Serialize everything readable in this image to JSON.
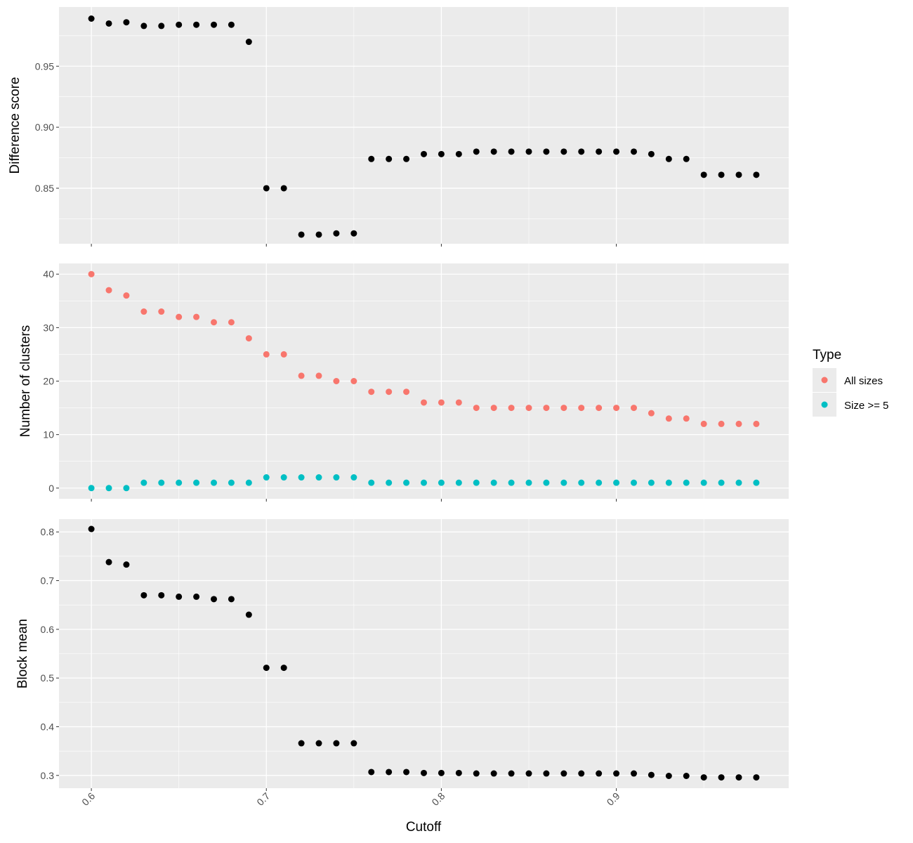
{
  "chart_data": [
    {
      "type": "scatter",
      "panel": "top",
      "xlabel": "",
      "ylabel": "Difference score",
      "xlim": [
        0.5815,
        0.9985
      ],
      "ylim": [
        0.8045,
        0.9985
      ],
      "yticks": [
        0.85,
        0.9,
        0.95
      ],
      "ytick_labels": [
        "0.85",
        "0.90",
        "0.95"
      ],
      "xticks": [
        0.6,
        0.7,
        0.8,
        0.9
      ],
      "show_x_tick_labels": false,
      "grid": true,
      "series": [
        {
          "color": "#000000",
          "x": [
            0.6,
            0.61,
            0.62,
            0.63,
            0.64,
            0.65,
            0.66,
            0.67,
            0.68,
            0.69,
            0.7,
            0.71,
            0.72,
            0.73,
            0.74,
            0.75,
            0.76,
            0.77,
            0.78,
            0.79,
            0.8,
            0.81,
            0.82,
            0.83,
            0.84,
            0.85,
            0.86,
            0.87,
            0.88,
            0.89,
            0.9,
            0.91,
            0.92,
            0.93,
            0.94,
            0.95,
            0.96,
            0.97,
            0.98
          ],
          "y": [
            0.989,
            0.985,
            0.986,
            0.983,
            0.983,
            0.984,
            0.984,
            0.984,
            0.984,
            0.97,
            0.85,
            0.85,
            0.812,
            0.812,
            0.813,
            0.813,
            0.874,
            0.874,
            0.874,
            0.878,
            0.878,
            0.878,
            0.88,
            0.88,
            0.88,
            0.88,
            0.88,
            0.88,
            0.88,
            0.88,
            0.88,
            0.88,
            0.878,
            0.874,
            0.874,
            0.861,
            0.861,
            0.861,
            0.861
          ]
        }
      ]
    },
    {
      "type": "scatter",
      "panel": "middle",
      "xlabel": "",
      "ylabel": "Number of clusters",
      "xlim": [
        0.5815,
        0.9985
      ],
      "ylim": [
        -2,
        42
      ],
      "yticks": [
        0,
        10,
        20,
        30,
        40
      ],
      "ytick_labels": [
        "0",
        "10",
        "20",
        "30",
        "40"
      ],
      "xticks": [
        0.6,
        0.7,
        0.8,
        0.9
      ],
      "show_x_tick_labels": false,
      "grid": true,
      "legend": {
        "title": "Type",
        "position": "right"
      },
      "series": [
        {
          "name": "All sizes",
          "color": "#F8766D",
          "x": [
            0.6,
            0.61,
            0.62,
            0.63,
            0.64,
            0.65,
            0.66,
            0.67,
            0.68,
            0.69,
            0.7,
            0.71,
            0.72,
            0.73,
            0.74,
            0.75,
            0.76,
            0.77,
            0.78,
            0.79,
            0.8,
            0.81,
            0.82,
            0.83,
            0.84,
            0.85,
            0.86,
            0.87,
            0.88,
            0.89,
            0.9,
            0.91,
            0.92,
            0.93,
            0.94,
            0.95,
            0.96,
            0.97,
            0.98
          ],
          "y": [
            40,
            37,
            36,
            33,
            33,
            32,
            32,
            31,
            31,
            28,
            25,
            25,
            21,
            21,
            20,
            20,
            18,
            18,
            18,
            16,
            16,
            16,
            15,
            15,
            15,
            15,
            15,
            15,
            15,
            15,
            15,
            15,
            14,
            13,
            13,
            12,
            12,
            12,
            12
          ]
        },
        {
          "name": "Size >= 5",
          "color": "#00BFC4",
          "x": [
            0.6,
            0.61,
            0.62,
            0.63,
            0.64,
            0.65,
            0.66,
            0.67,
            0.68,
            0.69,
            0.7,
            0.71,
            0.72,
            0.73,
            0.74,
            0.75,
            0.76,
            0.77,
            0.78,
            0.79,
            0.8,
            0.81,
            0.82,
            0.83,
            0.84,
            0.85,
            0.86,
            0.87,
            0.88,
            0.89,
            0.9,
            0.91,
            0.92,
            0.93,
            0.94,
            0.95,
            0.96,
            0.97,
            0.98
          ],
          "y": [
            0,
            0,
            0,
            1,
            1,
            1,
            1,
            1,
            1,
            1,
            2,
            2,
            2,
            2,
            2,
            2,
            1,
            1,
            1,
            1,
            1,
            1,
            1,
            1,
            1,
            1,
            1,
            1,
            1,
            1,
            1,
            1,
            1,
            1,
            1,
            1,
            1,
            1,
            1
          ]
        }
      ]
    },
    {
      "type": "scatter",
      "panel": "bottom",
      "xlabel": "Cutoff",
      "ylabel": "Block mean",
      "xlim": [
        0.5815,
        0.9985
      ],
      "ylim": [
        0.27375,
        0.82625
      ],
      "yticks": [
        0.3,
        0.4,
        0.5,
        0.6,
        0.7,
        0.8
      ],
      "ytick_labels": [
        "0.3",
        "0.4",
        "0.5",
        "0.6",
        "0.7",
        "0.8"
      ],
      "xticks": [
        0.6,
        0.7,
        0.8,
        0.9
      ],
      "xtick_labels": [
        "0.6",
        "0.7",
        "0.8",
        "0.9"
      ],
      "show_x_tick_labels": true,
      "grid": true,
      "series": [
        {
          "color": "#000000",
          "x": [
            0.6,
            0.61,
            0.62,
            0.63,
            0.64,
            0.65,
            0.66,
            0.67,
            0.68,
            0.69,
            0.7,
            0.71,
            0.72,
            0.73,
            0.74,
            0.75,
            0.76,
            0.77,
            0.78,
            0.79,
            0.8,
            0.81,
            0.82,
            0.83,
            0.84,
            0.85,
            0.86,
            0.87,
            0.88,
            0.89,
            0.9,
            0.91,
            0.92,
            0.93,
            0.94,
            0.95,
            0.96,
            0.97,
            0.98
          ],
          "y": [
            0.806,
            0.738,
            0.733,
            0.67,
            0.67,
            0.667,
            0.667,
            0.662,
            0.662,
            0.63,
            0.521,
            0.521,
            0.366,
            0.366,
            0.366,
            0.366,
            0.307,
            0.307,
            0.307,
            0.305,
            0.305,
            0.305,
            0.304,
            0.304,
            0.304,
            0.304,
            0.304,
            0.304,
            0.304,
            0.304,
            0.304,
            0.304,
            0.301,
            0.299,
            0.299,
            0.296,
            0.296,
            0.296,
            0.296
          ]
        }
      ]
    }
  ]
}
